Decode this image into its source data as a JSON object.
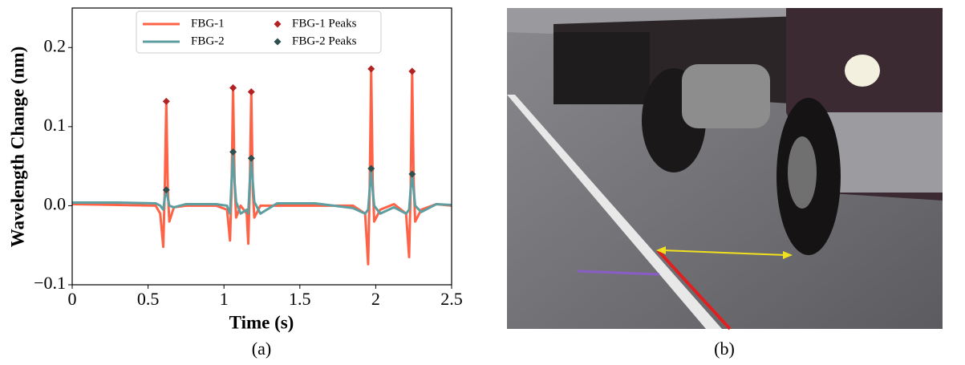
{
  "chart_data": {
    "type": "line",
    "xlabel": "Time (s)",
    "ylabel": "Wavelength Change (nm)",
    "xlim": [
      0,
      2.5
    ],
    "ylim": [
      -0.1,
      0.25
    ],
    "xticks": [
      0,
      0.5,
      1,
      1.5,
      2,
      2.5
    ],
    "yticks": [
      {
        "value": -0.1,
        "label": "−0.1"
      },
      {
        "value": 0,
        "label": "0.0"
      },
      0.1,
      0.2
    ],
    "legend": "upper center",
    "x": [
      0,
      0.3,
      0.55,
      0.58,
      0.6,
      0.61,
      0.62,
      0.63,
      0.64,
      0.67,
      0.75,
      0.95,
      1.02,
      1.04,
      1.05,
      1.06,
      1.07,
      1.08,
      1.11,
      1.15,
      1.16,
      1.17,
      1.18,
      1.19,
      1.2,
      1.24,
      1.35,
      1.6,
      1.85,
      1.93,
      1.95,
      1.96,
      1.97,
      1.98,
      1.99,
      2.03,
      2.12,
      2.2,
      2.22,
      2.23,
      2.24,
      2.25,
      2.26,
      2.3,
      2.4,
      2.5
    ],
    "series": [
      {
        "name": "FBG-1",
        "type": "line",
        "color": "#ff6347",
        "values": [
          0.002,
          0.001,
          0.0,
          -0.01,
          -0.052,
          0.02,
          0.132,
          0.02,
          -0.02,
          -0.002,
          0.0,
          0.0,
          -0.005,
          -0.044,
          0.02,
          0.149,
          0.03,
          -0.015,
          0.0,
          -0.01,
          -0.048,
          0.02,
          0.144,
          0.02,
          -0.015,
          0.0,
          0.0,
          0.0,
          0.0,
          -0.01,
          -0.074,
          0.02,
          0.173,
          0.03,
          -0.02,
          -0.005,
          0.002,
          -0.01,
          -0.065,
          0.02,
          0.17,
          0.03,
          -0.02,
          -0.005,
          0.002,
          0.0
        ]
      },
      {
        "name": "FBG-2",
        "type": "line",
        "color": "#5f9ea0",
        "values": [
          0.004,
          0.004,
          0.003,
          0.0,
          -0.005,
          0.01,
          0.02,
          0.01,
          0.0,
          -0.002,
          0.002,
          0.002,
          0.0,
          -0.01,
          0.03,
          0.068,
          0.03,
          0.005,
          -0.01,
          -0.005,
          -0.01,
          0.03,
          0.06,
          0.03,
          0.005,
          -0.01,
          0.003,
          0.003,
          -0.003,
          -0.01,
          -0.005,
          0.02,
          0.047,
          0.02,
          0.0,
          -0.01,
          -0.002,
          -0.01,
          -0.005,
          0.02,
          0.04,
          0.02,
          0.0,
          -0.008,
          0.002,
          0.001
        ]
      },
      {
        "name": "FBG-1 Peaks",
        "type": "scatter",
        "marker": "diamond",
        "color": "#b22222",
        "x": [
          0.62,
          1.06,
          1.18,
          1.97,
          2.24
        ],
        "values": [
          0.132,
          0.149,
          0.144,
          0.173,
          0.17
        ]
      },
      {
        "name": "FBG-2 Peaks",
        "type": "scatter",
        "marker": "diamond",
        "color": "#2f4f4f",
        "x": [
          0.62,
          1.06,
          1.18,
          1.97,
          2.24
        ],
        "values": [
          0.02,
          0.068,
          0.06,
          0.047,
          0.04
        ]
      }
    ]
  },
  "captions": [
    "(a)",
    "(b)"
  ]
}
